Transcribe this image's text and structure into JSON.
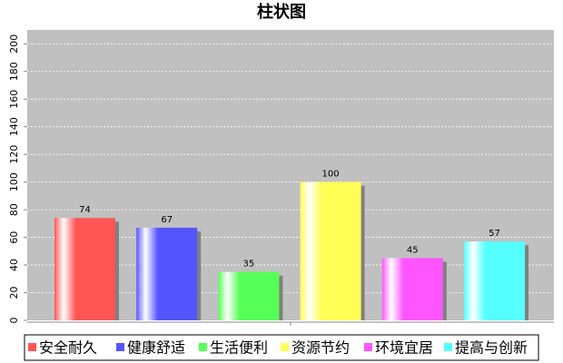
{
  "chart_data": {
    "type": "bar",
    "title": "柱状图",
    "categories": [
      null
    ],
    "series": [
      {
        "name": "安全耐久",
        "color": "#ff5555",
        "values": [
          74
        ]
      },
      {
        "name": "健康舒适",
        "color": "#5555ff",
        "values": [
          67
        ]
      },
      {
        "name": "生活便利",
        "color": "#55ff55",
        "values": [
          35
        ]
      },
      {
        "name": "资源节约",
        "color": "#ffff55",
        "values": [
          100
        ]
      },
      {
        "name": "环境宜居",
        "color": "#ff55ff",
        "values": [
          45
        ]
      },
      {
        "name": "提高与创新",
        "color": "#55ffff",
        "values": [
          57
        ]
      }
    ],
    "ylim": [
      0,
      210
    ],
    "yticks": [
      0,
      20,
      40,
      60,
      80,
      100,
      120,
      140,
      160,
      180,
      200
    ],
    "grid": true
  }
}
